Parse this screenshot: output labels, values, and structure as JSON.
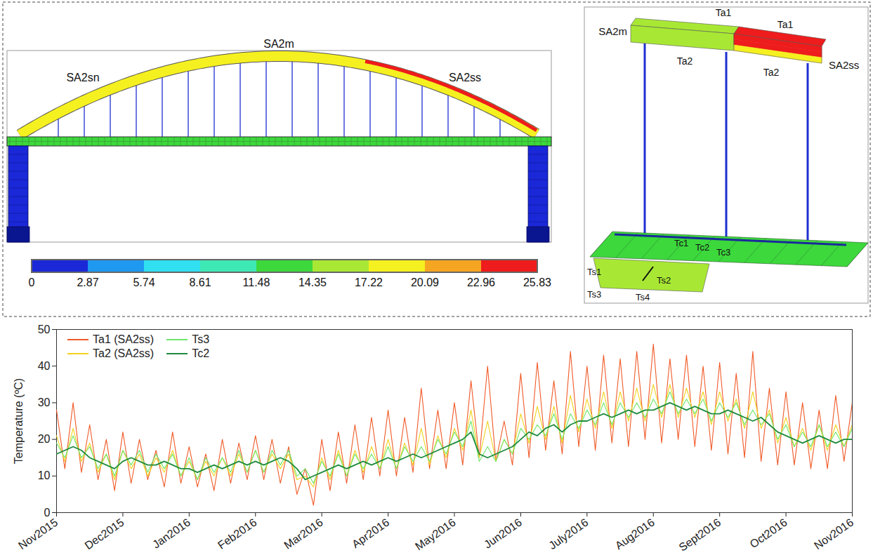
{
  "chart_data": {
    "type": "line",
    "y_label": "Temperature (ºC)",
    "xlim": [
      0,
      12
    ],
    "xticks": [
      {
        "value": 0,
        "label": "Nov2015"
      },
      {
        "value": 1,
        "label": "Dec2015"
      },
      {
        "value": 2,
        "label": "Jan2016"
      },
      {
        "value": 3,
        "label": "Feb2016"
      },
      {
        "value": 4,
        "label": "Mar2016"
      },
      {
        "value": 5,
        "label": "Apr2016"
      },
      {
        "value": 6,
        "label": "May2016"
      },
      {
        "value": 7,
        "label": "Jun2016"
      },
      {
        "value": 8,
        "label": "July2016"
      },
      {
        "value": 9,
        "label": "Aug2016"
      },
      {
        "value": 10,
        "label": "Sept2016"
      },
      {
        "value": 11,
        "label": "Oct2016"
      },
      {
        "value": 12,
        "label": "Nov2016"
      }
    ],
    "ylim": [
      0,
      50
    ],
    "yticks": [
      0,
      10,
      20,
      30,
      40,
      50
    ],
    "grid": false,
    "legend": "upper left",
    "x": [
      0,
      0.125,
      0.25,
      0.375,
      0.5,
      0.625,
      0.75,
      0.875,
      1,
      1.125,
      1.25,
      1.375,
      1.5,
      1.625,
      1.75,
      1.875,
      2,
      2.125,
      2.25,
      2.375,
      2.5,
      2.625,
      2.75,
      2.875,
      3,
      3.125,
      3.25,
      3.375,
      3.5,
      3.625,
      3.75,
      3.875,
      4,
      4.125,
      4.25,
      4.375,
      4.5,
      4.625,
      4.75,
      4.875,
      5,
      5.125,
      5.25,
      5.375,
      5.5,
      5.625,
      5.75,
      5.875,
      6,
      6.125,
      6.25,
      6.375,
      6.5,
      6.625,
      6.75,
      6.875,
      7,
      7.125,
      7.25,
      7.375,
      7.5,
      7.625,
      7.75,
      7.875,
      8,
      8.125,
      8.25,
      8.375,
      8.5,
      8.625,
      8.75,
      8.875,
      9,
      9.125,
      9.25,
      9.375,
      9.5,
      9.625,
      9.75,
      9.875,
      10,
      10.125,
      10.25,
      10.375,
      10.5,
      10.625,
      10.75,
      10.875,
      11,
      11.125,
      11.25,
      11.375,
      11.5,
      11.625,
      11.75,
      11.875,
      12
    ],
    "series": [
      {
        "name": "Ta1 (SA2ss)",
        "color": "#f05a28",
        "values": [
          28,
          12,
          30,
          11,
          24,
          9,
          20,
          6,
          22,
          8,
          20,
          9,
          17,
          7,
          22,
          8,
          18,
          7,
          16,
          6,
          20,
          8,
          19,
          9,
          21,
          9,
          20,
          8,
          18,
          5,
          12,
          2,
          20,
          6,
          22,
          8,
          24,
          9,
          26,
          10,
          28,
          10,
          26,
          11,
          34,
          12,
          28,
          12,
          30,
          13,
          36,
          15,
          40,
          14,
          25,
          13,
          38,
          15,
          41,
          17,
          36,
          16,
          44,
          18,
          40,
          17,
          43,
          19,
          42,
          18,
          44,
          20,
          46,
          19,
          42,
          20,
          43,
          18,
          40,
          17,
          41,
          16,
          38,
          15,
          44,
          14,
          34,
          13,
          33,
          13,
          30,
          12,
          28,
          12,
          32,
          14,
          30
        ]
      },
      {
        "name": "Ta2 (SA2ss)",
        "color": "#f2d21c",
        "values": [
          21,
          14,
          23,
          14,
          19,
          11,
          16,
          9,
          17,
          12,
          16,
          10,
          15,
          11,
          17,
          10,
          14,
          9,
          14,
          10,
          15,
          10,
          16,
          11,
          17,
          11,
          16,
          12,
          16,
          9,
          10,
          7,
          15,
          9,
          17,
          10,
          17,
          11,
          18,
          12,
          20,
          12,
          19,
          13,
          23,
          13,
          21,
          15,
          23,
          17,
          28,
          15,
          25,
          14,
          20,
          16,
          27,
          19,
          29,
          20,
          29,
          19,
          32,
          22,
          31,
          23,
          33,
          23,
          33,
          25,
          34,
          25,
          35,
          26,
          35,
          26,
          34,
          26,
          33,
          24,
          33,
          25,
          31,
          23,
          33,
          23,
          28,
          19,
          26,
          18,
          23,
          17,
          24,
          17,
          24,
          18,
          24
        ]
      },
      {
        "name": "Ts3",
        "color": "#6ee66a",
        "values": [
          19,
          15,
          21,
          15,
          18,
          12,
          16,
          10,
          17,
          13,
          17,
          11,
          16,
          12,
          16,
          10,
          15,
          9,
          15,
          11,
          15,
          11,
          17,
          11,
          17,
          11,
          17,
          13,
          17,
          10,
          12,
          8,
          14,
          10,
          16,
          10,
          16,
          12,
          16,
          12,
          18,
          12,
          18,
          14,
          18,
          14,
          20,
          16,
          22,
          18,
          25,
          14,
          18,
          14,
          20,
          16,
          23,
          20,
          24,
          21,
          27,
          20,
          27,
          23,
          28,
          24,
          30,
          24,
          30,
          26,
          30,
          26,
          31,
          27,
          33,
          27,
          31,
          27,
          31,
          25,
          30,
          26,
          30,
          24,
          28,
          24,
          27,
          20,
          24,
          18,
          22,
          18,
          24,
          18,
          22,
          18,
          23
        ]
      },
      {
        "name": "Tc2",
        "color": "#1e8a3c",
        "values": [
          16,
          17,
          18,
          17,
          15,
          14,
          13,
          12,
          14,
          15,
          14,
          13,
          13,
          14,
          13,
          12,
          12,
          11,
          12,
          13,
          12,
          13,
          14,
          13,
          14,
          13,
          14,
          15,
          14,
          12,
          9,
          10,
          11,
          12,
          13,
          12,
          13,
          14,
          13,
          14,
          15,
          14,
          15,
          16,
          15,
          16,
          17,
          18,
          19,
          20,
          22,
          16,
          15,
          16,
          17,
          18,
          20,
          22,
          21,
          23,
          24,
          22,
          24,
          25,
          25,
          26,
          27,
          26,
          27,
          28,
          27,
          28,
          28,
          29,
          30,
          29,
          28,
          29,
          28,
          27,
          27,
          28,
          27,
          26,
          25,
          26,
          24,
          22,
          21,
          20,
          19,
          20,
          21,
          20,
          19,
          20,
          20
        ]
      }
    ]
  },
  "diagram": {
    "elevation_labels": {
      "north": "SA2sn",
      "mid": "SA2m",
      "south": "SA2ss"
    },
    "colorbar": {
      "range": [
        0,
        25.83
      ],
      "ticks": [
        0,
        2.87,
        5.74,
        8.61,
        11.48,
        14.35,
        17.22,
        20.09,
        22.96,
        25.83
      ],
      "colors": [
        "#1a28d8",
        "#1f98f0",
        "#30e0f0",
        "#3ee8b4",
        "#3cd83c",
        "#a8e834",
        "#f5f020",
        "#f5a522",
        "#ee1c1c"
      ]
    },
    "temperatures": {
      "arch": 17.5,
      "arch_top_ss": 25.5,
      "deck": 14,
      "piers": 1,
      "section_SA2m": 17,
      "section_SA2ss": [
        25.5,
        23,
        20
      ],
      "section_deck": 13,
      "section_box": 16
    },
    "section_labels": {
      "arch_segments": [
        "SA2m",
        "SA2ss"
      ],
      "arch_top": [
        "Ta1",
        "Ta1"
      ],
      "arch_bottom": [
        "Ta2",
        "Ta2"
      ],
      "deck": [
        "Tc1",
        "Tc2",
        "Tc3"
      ],
      "box": [
        "Ts1",
        "Ts2",
        "Ts3",
        "Ts4"
      ]
    }
  }
}
